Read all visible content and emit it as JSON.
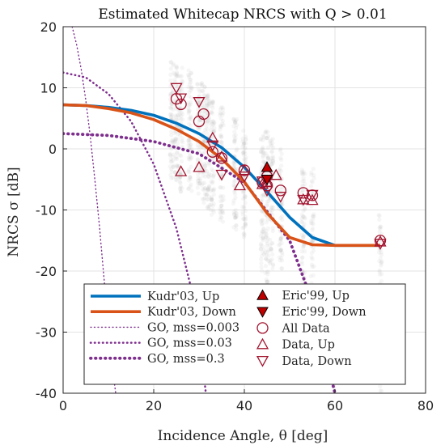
{
  "chart_data": {
    "type": "scatter",
    "title": "Estimated Whitecap NRCS with Q > 0.01",
    "xlabel": "Incidence Angle, θ [deg]",
    "ylabel": "NRCS σ [dB]",
    "xlim": [
      0,
      80
    ],
    "ylim": [
      -40,
      20
    ],
    "xticks": [
      0,
      20,
      40,
      60,
      80
    ],
    "yticks": [
      -40,
      -30,
      -20,
      -10,
      0,
      10,
      20
    ],
    "grid": true,
    "legend_placement": "bottom",
    "colors": {
      "up": "#0072bd",
      "down": "#d95319",
      "go": "#7e2f8e",
      "data": "#a2142f",
      "scatter": "#b4b4b4"
    },
    "series": [
      {
        "name": "Kudr'03, Up",
        "style": "solid-thick",
        "color": "#0072bd",
        "x": [
          0,
          5,
          10,
          15,
          20,
          25,
          30,
          35,
          40,
          45,
          50,
          55,
          60,
          65,
          70
        ],
        "y": [
          7.2,
          7.1,
          6.8,
          6.3,
          5.5,
          4.2,
          2.5,
          0.2,
          -3.0,
          -7.0,
          -11.2,
          -14.5,
          -15.8,
          -15.8,
          -15.8
        ]
      },
      {
        "name": "Kudr'03, Down",
        "style": "solid-thick",
        "color": "#d95319",
        "x": [
          0,
          5,
          10,
          15,
          20,
          25,
          30,
          35,
          40,
          45,
          50,
          55,
          60,
          65,
          70
        ],
        "y": [
          7.2,
          7.1,
          6.6,
          5.9,
          4.8,
          3.2,
          1.2,
          -1.6,
          -5.4,
          -10.5,
          -14.5,
          -15.7,
          -15.8,
          -15.8,
          -15.8
        ]
      },
      {
        "name": "GO, mss=0.003",
        "style": "dotted-thin",
        "color": "#7e2f8e",
        "x": [
          2,
          3,
          4,
          5,
          6,
          7,
          8,
          9,
          10,
          11,
          11.6
        ],
        "y": [
          20,
          17,
          13,
          8,
          2,
          -5,
          -12.5,
          -21,
          -29,
          -36.5,
          -40
        ]
      },
      {
        "name": "GO, mss=0.03",
        "style": "dotted-medium",
        "color": "#7e2f8e",
        "x": [
          0,
          5,
          10,
          15,
          20,
          25,
          28,
          30,
          31.5
        ],
        "y": [
          12.5,
          11.7,
          9.0,
          4.5,
          -2.5,
          -13,
          -22,
          -30,
          -40
        ]
      },
      {
        "name": "GO, mss=0.3",
        "style": "dotted-thick",
        "color": "#7e2f8e",
        "x": [
          0,
          10,
          20,
          30,
          40,
          50,
          55,
          60
        ],
        "y": [
          2.5,
          2.2,
          1.2,
          -0.8,
          -5.5,
          -15,
          -25,
          -40
        ]
      },
      {
        "name": "Eric'99, Up",
        "marker": "triangle-up-filled",
        "color": "#c00000",
        "x": [
          45
        ],
        "y": [
          -3
        ]
      },
      {
        "name": "Eric'99, Down",
        "marker": "triangle-down-filled",
        "color": "#c00000",
        "x": [
          45
        ],
        "y": [
          -5
        ]
      },
      {
        "name": "All Data",
        "marker": "circle-open",
        "color": "#a2142f",
        "x": [
          25,
          26,
          30,
          31,
          33,
          35,
          40,
          44,
          45,
          45,
          48,
          53,
          55,
          70
        ],
        "y": [
          8.2,
          7.3,
          4.5,
          5.7,
          -0.5,
          -1.5,
          -3.5,
          -5.5,
          -4.5,
          -6,
          -6.8,
          -7.2,
          -7.6,
          -15
        ]
      },
      {
        "name": "Data, Up",
        "marker": "triangle-up-open",
        "color": "#a2142f",
        "x": [
          26,
          30,
          33,
          35,
          39,
          40,
          44,
          45,
          47,
          53,
          55,
          70
        ],
        "y": [
          -3.7,
          -3,
          1.8,
          -1.3,
          -6,
          -3.5,
          -5.8,
          -5.5,
          -4.3,
          -8.3,
          -8.4,
          -15.2
        ]
      },
      {
        "name": "Data, Down",
        "marker": "triangle-down-open",
        "color": "#a2142f",
        "x": [
          25,
          26,
          30,
          33,
          35,
          40,
          44,
          45,
          48,
          53,
          55,
          70
        ],
        "y": [
          10,
          8.3,
          7.7,
          0.6,
          -4.2,
          -4.5,
          -5.3,
          -6.8,
          -7.8,
          -8.3,
          -7.5,
          -15.5
        ]
      }
    ],
    "background_scatter_columns": {
      "x": [
        24,
        25,
        26,
        28,
        30,
        31,
        32,
        33,
        35,
        38,
        40,
        44,
        45,
        46,
        48,
        53,
        55,
        70
      ],
      "y_range": [
        [
          -5,
          15
        ],
        [
          -6,
          14
        ],
        [
          -7,
          14
        ],
        [
          -7,
          13
        ],
        [
          -8,
          11
        ],
        [
          -9,
          11
        ],
        [
          -10,
          9
        ],
        [
          -11,
          8
        ],
        [
          -12,
          7
        ],
        [
          -14,
          5
        ],
        [
          -15,
          3
        ],
        [
          -20,
          3
        ],
        [
          -22,
          3
        ],
        [
          -20,
          2
        ],
        [
          -20,
          0
        ],
        [
          -25,
          -3
        ],
        [
          -30,
          -3
        ],
        [
          -40,
          -10
        ]
      ]
    }
  }
}
